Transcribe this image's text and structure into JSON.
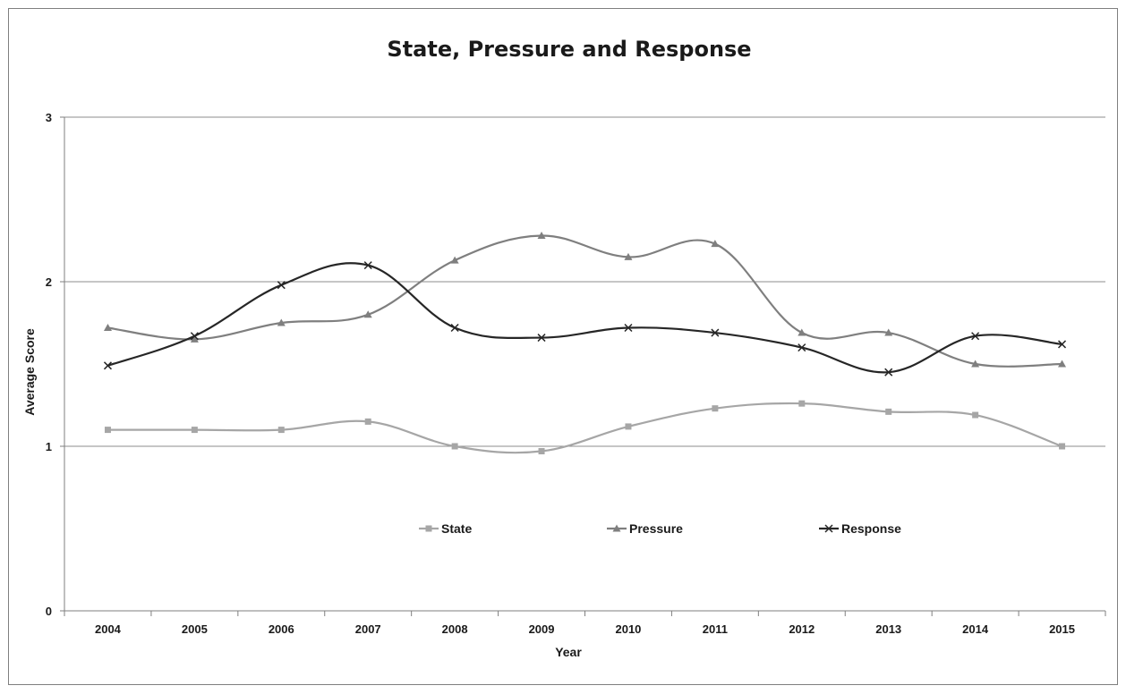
{
  "chart_data": {
    "type": "line",
    "title": "State, Pressure and Response",
    "xlabel": "Year",
    "ylabel": "Average Score",
    "categories": [
      "2004",
      "2005",
      "2006",
      "2007",
      "2008",
      "2009",
      "2010",
      "2011",
      "2012",
      "2013",
      "2014",
      "2015"
    ],
    "ylim": [
      0,
      3
    ],
    "yticks": [
      "0",
      "1",
      "2",
      "3"
    ],
    "grid": true,
    "smooth": true,
    "legend_position": "inside-center",
    "series": [
      {
        "name": "State",
        "marker": "square",
        "color": "#a6a6a6",
        "values": [
          1.1,
          1.1,
          1.1,
          1.15,
          1.0,
          0.97,
          1.12,
          1.23,
          1.26,
          1.21,
          1.19,
          1.0
        ]
      },
      {
        "name": "Pressure",
        "marker": "triangle",
        "color": "#7f7f7f",
        "values": [
          1.72,
          1.65,
          1.75,
          1.8,
          2.13,
          2.28,
          2.15,
          2.23,
          1.69,
          1.69,
          1.5,
          1.5
        ]
      },
      {
        "name": "Response",
        "marker": "x",
        "color": "#262626",
        "values": [
          1.49,
          1.67,
          1.98,
          2.1,
          1.72,
          1.66,
          1.72,
          1.69,
          1.6,
          1.45,
          1.67,
          1.62
        ]
      }
    ]
  }
}
